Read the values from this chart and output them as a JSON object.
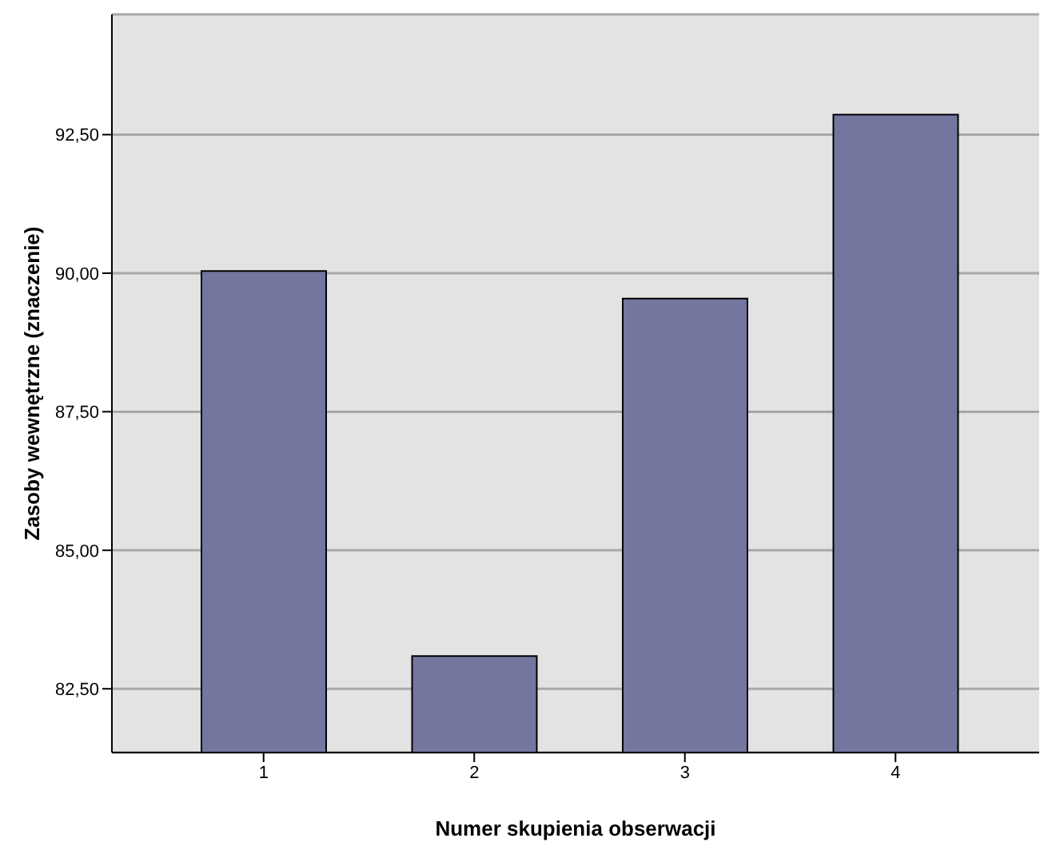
{
  "chart_data": {
    "type": "bar",
    "xlabel": "Numer skupienia obserwacji",
    "ylabel": "Zasoby wewnętrzne (znaczenie)",
    "categories": [
      "1",
      "2",
      "3",
      "4"
    ],
    "values": [
      90.04,
      83.09,
      89.54,
      92.86
    ],
    "color": "#7476a0",
    "ylim": [
      81.35,
      94.67
    ],
    "yticks": [
      {
        "value": 82.5,
        "label": "82,50"
      },
      {
        "value": 85,
        "label": "85,00"
      },
      {
        "value": 87.5,
        "label": "87,50"
      },
      {
        "value": 90,
        "label": "90,00"
      },
      {
        "value": 92.5,
        "label": "92,50"
      }
    ],
    "grid": "y"
  }
}
